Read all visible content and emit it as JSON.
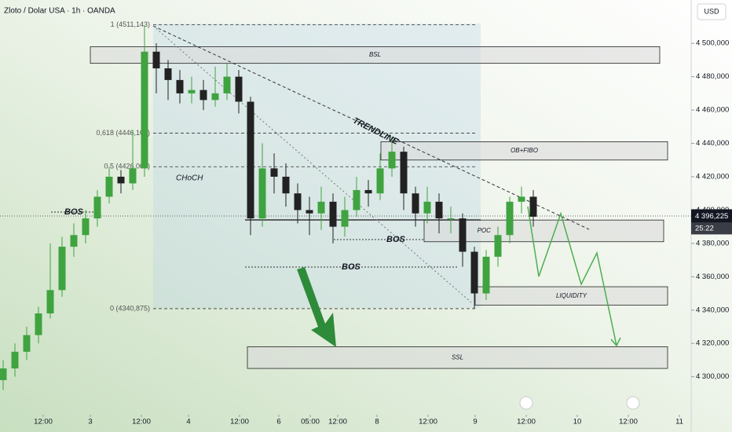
{
  "chart_data": {
    "type": "candlestick",
    "title": "Zloto / Dolar USA · 1h · OANDA",
    "currency": "USD",
    "up_color": "#3fa33f",
    "down_color": "#222222",
    "xlim": [
      0,
      176
    ],
    "ylim": [
      4281,
      4526
    ],
    "xticks": [
      {
        "value": 11,
        "label": "12:00"
      },
      {
        "value": 23,
        "label": "3"
      },
      {
        "value": 36,
        "label": "12:00"
      },
      {
        "value": 48,
        "label": "4"
      },
      {
        "value": 61,
        "label": "12:00"
      },
      {
        "value": 71,
        "label": "6"
      },
      {
        "value": 79,
        "label": "05:00"
      },
      {
        "value": 86,
        "label": "12:00"
      },
      {
        "value": 96,
        "label": "8"
      },
      {
        "value": 109,
        "label": "12:00"
      },
      {
        "value": 121,
        "label": "9"
      },
      {
        "value": 134,
        "label": "12:00"
      },
      {
        "value": 147,
        "label": "10"
      },
      {
        "value": 160,
        "label": "12:00"
      },
      {
        "value": 173,
        "label": "11"
      }
    ],
    "yticks": [
      {
        "value": 4300,
        "label": "4 300,000"
      },
      {
        "value": 4320,
        "label": "4 320,000"
      },
      {
        "value": 4340,
        "label": "4 340,000"
      },
      {
        "value": 4360,
        "label": "4 360,000"
      },
      {
        "value": 4380,
        "label": "4 380,000"
      },
      {
        "value": 4400,
        "label": "4 400,000"
      },
      {
        "value": 4420,
        "label": "4 420,000"
      },
      {
        "value": 4440,
        "label": "4 440,000"
      },
      {
        "value": 4460,
        "label": "4 460,000"
      },
      {
        "value": 4480,
        "label": "4 480,000"
      },
      {
        "value": 4500,
        "label": "4 500,000"
      }
    ],
    "x": [
      0,
      3,
      6,
      9,
      12,
      15,
      18,
      21,
      24,
      27,
      30,
      33,
      36,
      39,
      42,
      45,
      48,
      51,
      54,
      57,
      60,
      63,
      66,
      69,
      72,
      75,
      78,
      81,
      84,
      87,
      90,
      93,
      96,
      99,
      102,
      105,
      108,
      111,
      114,
      117,
      120,
      123,
      126,
      129,
      132,
      135
    ],
    "open": [
      4298,
      4305,
      4315,
      4325,
      4338,
      4352,
      4378,
      4385,
      4395,
      4408,
      4420,
      4416,
      4425,
      4495,
      4485,
      4478,
      4470,
      4472,
      4466,
      4470,
      4480,
      4465,
      4395,
      4425,
      4420,
      4410,
      4400,
      4398,
      4405,
      4390,
      4400,
      4412,
      4410,
      4425,
      4435,
      4410,
      4398,
      4405,
      4395,
      4395,
      4375,
      4350,
      4372,
      4385,
      4405,
      4408
    ],
    "high": [
      4310,
      4320,
      4330,
      4342,
      4380,
      4384,
      4392,
      4400,
      4412,
      4426,
      4424,
      4448,
      4511,
      4500,
      4490,
      4484,
      4480,
      4478,
      4486,
      4488,
      4484,
      4468,
      4440,
      4434,
      4428,
      4416,
      4408,
      4414,
      4410,
      4408,
      4420,
      4418,
      4434,
      4444,
      4438,
      4414,
      4414,
      4410,
      4402,
      4398,
      4378,
      4376,
      4390,
      4408,
      4414,
      4412
    ],
    "low": [
      4292,
      4300,
      4310,
      4320,
      4335,
      4348,
      4372,
      4380,
      4390,
      4404,
      4410,
      4412,
      4420,
      4470,
      4466,
      4464,
      4464,
      4460,
      4462,
      4466,
      4458,
      4385,
      4390,
      4410,
      4402,
      4392,
      4385,
      4388,
      4380,
      4384,
      4396,
      4402,
      4406,
      4420,
      4400,
      4390,
      4392,
      4386,
      4386,
      4366,
      4341,
      4346,
      4366,
      4380,
      4398,
      4390
    ],
    "close": [
      4305,
      4315,
      4325,
      4338,
      4352,
      4378,
      4385,
      4395,
      4408,
      4420,
      4416,
      4425,
      4495,
      4485,
      4478,
      4470,
      4472,
      4466,
      4470,
      4480,
      4465,
      4395,
      4425,
      4420,
      4410,
      4400,
      4398,
      4405,
      4390,
      4400,
      4412,
      4410,
      4425,
      4435,
      4410,
      4398,
      4405,
      4395,
      4395,
      4375,
      4350,
      4372,
      4385,
      4405,
      4408,
      4396
    ],
    "fib_levels": [
      {
        "value": 4511.143,
        "label": "1 (4511,143)"
      },
      {
        "value": 4446.101,
        "label": "0,618 (4446,101)"
      },
      {
        "value": 4426.009,
        "label": "0,5 (4426,009)"
      },
      {
        "value": 4340.875,
        "label": "0 (4340,875)"
      }
    ],
    "zones": [
      {
        "label": "BSL",
        "x": [
          23,
          168
        ],
        "y": [
          4488,
          4498
        ]
      },
      {
        "label": "OB+FIBO",
        "x": [
          97,
          170
        ],
        "y": [
          4430,
          4441
        ]
      },
      {
        "label": "POC",
        "x": [
          108,
          169
        ],
        "y": [
          4381,
          4394
        ]
      },
      {
        "label": "LIQUIDITY",
        "x": [
          121,
          170
        ],
        "y": [
          4343,
          4354
        ]
      },
      {
        "label": "SSL",
        "x": [
          63,
          170
        ],
        "y": [
          4305,
          4318
        ]
      }
    ],
    "annotations": [
      "BOS",
      "BOS",
      "BOS",
      "CHoCH",
      "TRENDLINE"
    ],
    "current_price": {
      "value": 4396.225,
      "label": "4 396,225"
    },
    "countdown": "25:22"
  }
}
